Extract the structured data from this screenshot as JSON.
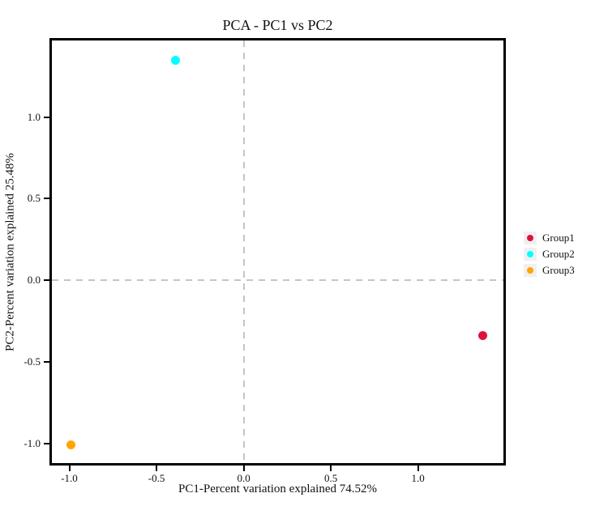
{
  "chart_data": {
    "type": "scatter",
    "title": "PCA - PC1 vs PC2",
    "xlabel": "PC1-Percent variation explained 74.52%",
    "ylabel": "PC2-Percent variation explained 25.48%",
    "xlim": [
      -1.1,
      1.49
    ],
    "ylim": [
      -1.12,
      1.47
    ],
    "xticks": [
      -1.0,
      -0.5,
      0.0,
      0.5,
      1.0
    ],
    "yticks": [
      -1.0,
      -0.5,
      0.0,
      0.5,
      1.0
    ],
    "grid": false,
    "frame_color": "#000000",
    "reference_lines": [
      {
        "axis": "x",
        "value": 0.0,
        "style": "dashed",
        "color": "#c5c5c5"
      },
      {
        "axis": "y",
        "value": 0.0,
        "style": "dashed",
        "color": "#c5c5c5"
      }
    ],
    "series": [
      {
        "name": "Group1",
        "color": "#dc143c",
        "points": [
          {
            "x": 1.37,
            "y": -0.34
          }
        ]
      },
      {
        "name": "Group2",
        "color": "#00ffff",
        "points": [
          {
            "x": -0.39,
            "y": 1.35
          }
        ]
      },
      {
        "name": "Group3",
        "color": "#ffa500",
        "points": [
          {
            "x": -0.99,
            "y": -1.01
          }
        ]
      }
    ],
    "legend": {
      "position": "right",
      "key_background": "#f0f0f0",
      "entries": [
        "Group1",
        "Group2",
        "Group3"
      ]
    }
  }
}
